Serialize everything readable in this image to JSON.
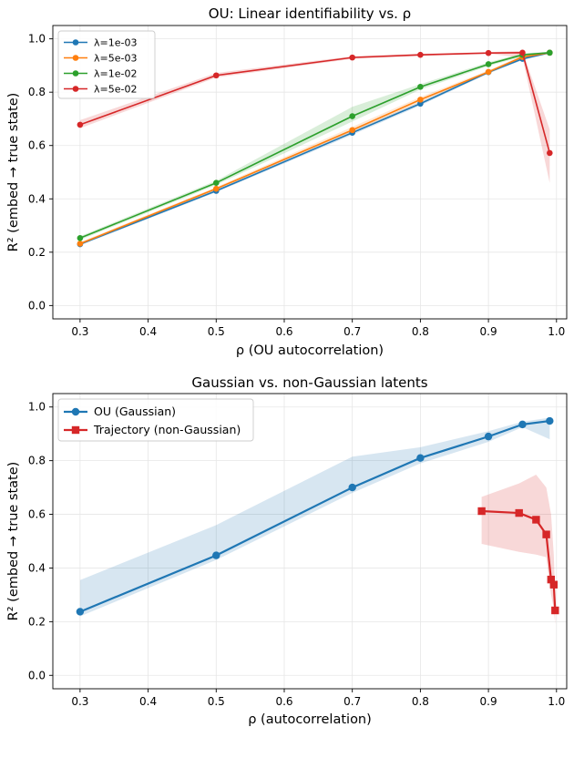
{
  "chart_data": [
    {
      "type": "line",
      "title": "OU: Linear identifiability vs. ρ",
      "xlabel": "ρ (OU autocorrelation)",
      "ylabel": "R² (embed → true state)",
      "xlim": [
        0.26,
        1.015
      ],
      "ylim": [
        -0.05,
        1.05
      ],
      "xticks": [
        0.3,
        0.4,
        0.5,
        0.6,
        0.7,
        0.8,
        0.9,
        1.0
      ],
      "xtick_labels": [
        "0.3",
        "0.4",
        "0.5",
        "0.6",
        "0.7",
        "0.8",
        "0.9",
        "1.0"
      ],
      "yticks": [
        0.0,
        0.2,
        0.4,
        0.6,
        0.8,
        1.0
      ],
      "ytick_labels": [
        "0.0",
        "0.2",
        "0.4",
        "0.6",
        "0.8",
        "1.0"
      ],
      "grid": true,
      "legend_position": "top-left",
      "series": [
        {
          "name": "λ=1e-03",
          "color": "#1f77b4",
          "marker": "circle",
          "x": [
            0.3,
            0.5,
            0.7,
            0.8,
            0.9,
            0.95,
            0.99
          ],
          "y": [
            0.23,
            0.43,
            0.648,
            0.757,
            0.875,
            0.925,
            0.948
          ],
          "band_low": [
            0.225,
            0.425,
            0.64,
            0.75,
            0.87,
            0.92,
            0.944
          ],
          "band_high": [
            0.235,
            0.435,
            0.656,
            0.764,
            0.88,
            0.93,
            0.952
          ]
        },
        {
          "name": "λ=5e-03",
          "color": "#ff7f0e",
          "marker": "circle",
          "x": [
            0.3,
            0.5,
            0.7,
            0.8,
            0.9,
            0.95,
            0.99
          ],
          "y": [
            0.232,
            0.438,
            0.658,
            0.772,
            0.876,
            0.932,
            0.948
          ],
          "band_low": [
            0.227,
            0.432,
            0.645,
            0.762,
            0.87,
            0.926,
            0.944
          ],
          "band_high": [
            0.238,
            0.444,
            0.67,
            0.782,
            0.882,
            0.938,
            0.952
          ]
        },
        {
          "name": "λ=1e-02",
          "color": "#2ca02c",
          "marker": "circle",
          "x": [
            0.3,
            0.5,
            0.7,
            0.8,
            0.9,
            0.95,
            0.99
          ],
          "y": [
            0.253,
            0.46,
            0.71,
            0.82,
            0.905,
            0.94,
            0.948
          ],
          "band_low": [
            0.246,
            0.452,
            0.69,
            0.81,
            0.898,
            0.934,
            0.944
          ],
          "band_high": [
            0.26,
            0.468,
            0.745,
            0.83,
            0.912,
            0.946,
            0.952
          ]
        },
        {
          "name": "λ=5e-02",
          "color": "#d62728",
          "marker": "circle",
          "x": [
            0.3,
            0.5,
            0.7,
            0.8,
            0.9,
            0.95,
            0.99
          ],
          "y": [
            0.678,
            0.863,
            0.93,
            0.94,
            0.947,
            0.948,
            0.572
          ],
          "band_low": [
            0.665,
            0.855,
            0.925,
            0.936,
            0.944,
            0.93,
            0.46
          ],
          "band_high": [
            0.695,
            0.872,
            0.935,
            0.944,
            0.95,
            0.955,
            0.66
          ]
        }
      ]
    },
    {
      "type": "line",
      "title": "Gaussian vs. non-Gaussian latents",
      "xlabel": "ρ (autocorrelation)",
      "ylabel": "R² (embed → true state)",
      "xlim": [
        0.26,
        1.015
      ],
      "ylim": [
        -0.05,
        1.05
      ],
      "xticks": [
        0.3,
        0.4,
        0.5,
        0.6,
        0.7,
        0.8,
        0.9,
        1.0
      ],
      "xtick_labels": [
        "0.3",
        "0.4",
        "0.5",
        "0.6",
        "0.7",
        "0.8",
        "0.9",
        "1.0"
      ],
      "yticks": [
        0.0,
        0.2,
        0.4,
        0.6,
        0.8,
        1.0
      ],
      "ytick_labels": [
        "0.0",
        "0.2",
        "0.4",
        "0.6",
        "0.8",
        "1.0"
      ],
      "grid": true,
      "legend_position": "top-left",
      "series": [
        {
          "name": "OU (Gaussian)",
          "color": "#1f77b4",
          "marker": "circle",
          "x": [
            0.3,
            0.5,
            0.7,
            0.8,
            0.9,
            0.95,
            0.99
          ],
          "y": [
            0.237,
            0.447,
            0.7,
            0.81,
            0.89,
            0.935,
            0.948
          ],
          "band_low": [
            0.22,
            0.43,
            0.68,
            0.79,
            0.87,
            0.925,
            0.88
          ],
          "band_high": [
            0.355,
            0.56,
            0.815,
            0.85,
            0.91,
            0.945,
            0.96
          ]
        },
        {
          "name": "Trajectory (non-Gaussian)",
          "color": "#d62728",
          "marker": "square",
          "x": [
            0.89,
            0.945,
            0.97,
            0.985,
            0.992,
            0.996,
            0.998
          ],
          "y": [
            0.612,
            0.605,
            0.58,
            0.525,
            0.357,
            0.338,
            0.242
          ],
          "band_low": [
            0.49,
            0.46,
            0.45,
            0.44,
            0.3,
            0.25,
            0.19
          ],
          "band_high": [
            0.665,
            0.715,
            0.748,
            0.7,
            0.6,
            0.45,
            0.3
          ]
        }
      ]
    }
  ]
}
